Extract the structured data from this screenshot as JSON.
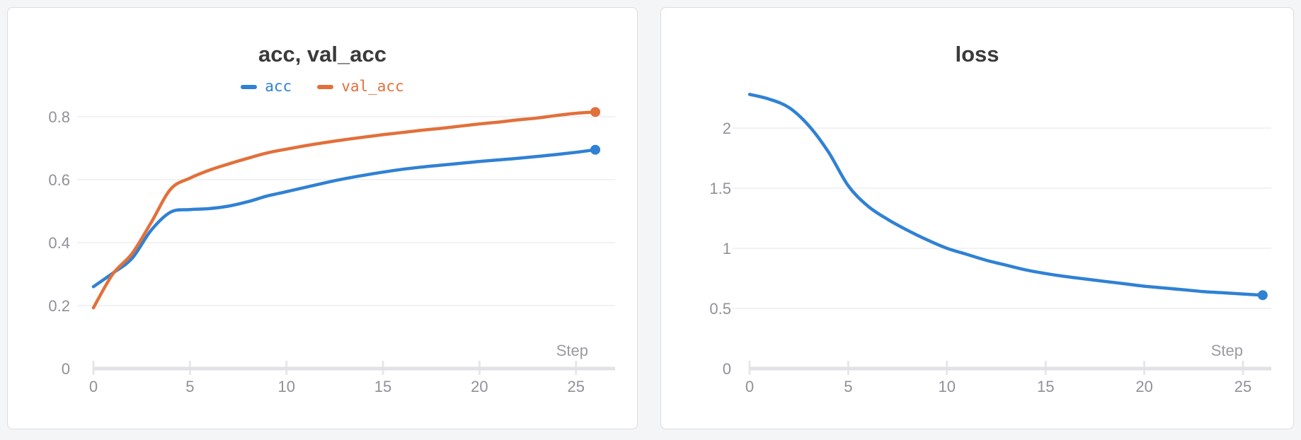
{
  "page": {
    "background": "#f4f5f6"
  },
  "chart_data": [
    {
      "type": "line",
      "title": "acc, val_acc",
      "xlabel": "Step",
      "grid": true,
      "legend_position": "top",
      "end_dot": true,
      "xlim": [
        0,
        26
      ],
      "ylim": [
        0,
        0.88
      ],
      "x_ticks": [
        0,
        5,
        10,
        15,
        20,
        25
      ],
      "y_ticks": [
        0,
        0.2,
        0.4,
        0.6,
        0.8
      ],
      "y_tick_labels": [
        "0",
        "0.2",
        "0.4",
        "0.6",
        "0.8"
      ],
      "x": [
        0,
        1,
        2,
        3,
        4,
        5,
        6,
        7,
        8,
        9,
        10,
        11,
        12,
        13,
        14,
        15,
        16,
        17,
        18,
        19,
        20,
        21,
        22,
        23,
        24,
        25,
        26
      ],
      "series": [
        {
          "name": "acc",
          "color": "#2f81d4",
          "values": [
            0.26,
            0.303,
            0.35,
            0.44,
            0.497,
            0.505,
            0.508,
            0.516,
            0.53,
            0.548,
            0.562,
            0.576,
            0.59,
            0.603,
            0.614,
            0.624,
            0.633,
            0.64,
            0.646,
            0.652,
            0.658,
            0.663,
            0.668,
            0.674,
            0.68,
            0.687,
            0.695
          ]
        },
        {
          "name": "val_acc",
          "color": "#e2703a",
          "values": [
            0.193,
            0.3,
            0.365,
            0.465,
            0.57,
            0.605,
            0.63,
            0.65,
            0.668,
            0.685,
            0.697,
            0.708,
            0.718,
            0.727,
            0.735,
            0.743,
            0.75,
            0.757,
            0.763,
            0.77,
            0.777,
            0.783,
            0.79,
            0.796,
            0.804,
            0.811,
            0.815
          ]
        }
      ]
    },
    {
      "type": "line",
      "title": "loss",
      "xlabel": "Step",
      "grid": true,
      "legend_position": "none",
      "end_dot": true,
      "xlim": [
        0,
        26
      ],
      "ylim": [
        0,
        2.4
      ],
      "x_ticks": [
        0,
        5,
        10,
        15,
        20,
        25
      ],
      "y_ticks": [
        0,
        0.5,
        1,
        1.5,
        2
      ],
      "y_tick_labels": [
        "0",
        "0.5",
        "1",
        "1.5",
        "2"
      ],
      "x": [
        0,
        1,
        2,
        3,
        4,
        5,
        6,
        7,
        8,
        9,
        10,
        11,
        12,
        13,
        14,
        15,
        16,
        17,
        18,
        19,
        20,
        21,
        22,
        23,
        24,
        25,
        26
      ],
      "series": [
        {
          "name": "loss",
          "color": "#2f81d4",
          "values": [
            2.28,
            2.24,
            2.17,
            2.02,
            1.8,
            1.52,
            1.35,
            1.24,
            1.15,
            1.07,
            1.0,
            0.95,
            0.9,
            0.86,
            0.82,
            0.79,
            0.765,
            0.745,
            0.725,
            0.705,
            0.685,
            0.67,
            0.655,
            0.64,
            0.63,
            0.62,
            0.61
          ]
        }
      ]
    }
  ]
}
